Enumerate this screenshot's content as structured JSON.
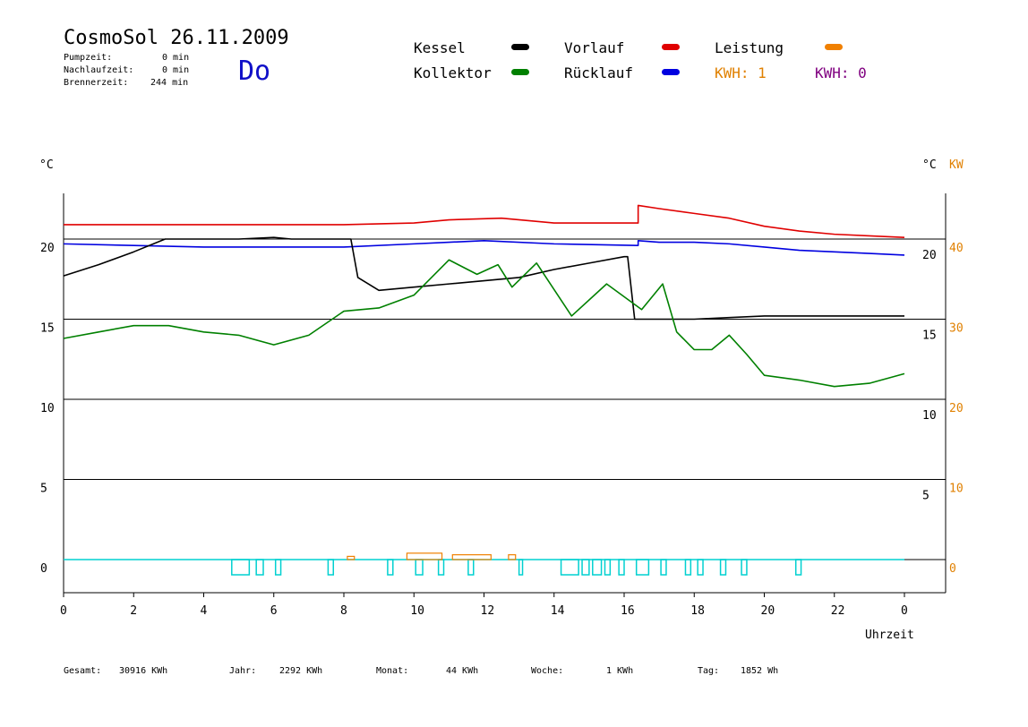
{
  "header": {
    "title": "CosmoSol 26.11.2009",
    "day": "Do",
    "stats": [
      {
        "label": "Pumpzeit:",
        "value": "0 min"
      },
      {
        "label": "Nachlaufzeit:",
        "value": "0 min"
      },
      {
        "label": "Brennerzeit:",
        "value": "244 min"
      }
    ]
  },
  "legend": {
    "kessel": {
      "label": "Kessel",
      "color": "#000000"
    },
    "kollektor": {
      "label": "Kollektor",
      "color": "#008000"
    },
    "vorlauf": {
      "label": "Vorlauf",
      "color": "#e00000"
    },
    "ruecklauf": {
      "label": "Rücklauf",
      "color": "#0000e0"
    },
    "leistung": {
      "label": "Leistung",
      "color": "#f08000"
    },
    "kwh1": {
      "label": "KWH: 1",
      "color": "#e08000"
    },
    "kwh2": {
      "label": "KWH: 0",
      "color": "#800080"
    }
  },
  "axes": {
    "left_unit": "°C",
    "right_unit": "°C",
    "right_unit2": "KW",
    "xlabel": "Uhrzeit"
  },
  "footer": [
    {
      "label": "Gesamt:",
      "value": "30916 KWh"
    },
    {
      "label": "Jahr:",
      "value": "2292 KWh"
    },
    {
      "label": "Monat:",
      "value": "44 KWh"
    },
    {
      "label": "Woche:",
      "value": "1 KWh"
    },
    {
      "label": "Tag:",
      "value": "1852 Wh"
    }
  ],
  "chart_data": {
    "type": "line",
    "xlim": [
      0,
      24
    ],
    "ylim": [
      -2,
      23
    ],
    "x_ticks": [
      "0",
      "2",
      "4",
      "6",
      "8",
      "10",
      "12",
      "14",
      "16",
      "18",
      "20",
      "22",
      "0"
    ],
    "left_ticks": [
      {
        "v": 0,
        "t": "0"
      },
      {
        "v": 5,
        "t": "5"
      },
      {
        "v": 10,
        "t": "10"
      },
      {
        "v": 15,
        "t": "15"
      },
      {
        "v": 20,
        "t": "20"
      }
    ],
    "right_ticks": [
      {
        "v": 0,
        "t": "0"
      },
      {
        "v": 5,
        "t": "10"
      },
      {
        "v": 10,
        "t": "20"
      },
      {
        "v": 15,
        "t": "30"
      },
      {
        "v": 20,
        "t": "40"
      }
    ],
    "inner_ticks": [
      {
        "v": 5,
        "t": "5"
      },
      {
        "v": 10,
        "t": "10"
      },
      {
        "v": 15,
        "t": "15"
      },
      {
        "v": 20,
        "t": "20"
      }
    ],
    "grid": [
      5,
      10,
      15,
      20
    ],
    "series": [
      {
        "name": "Vorlauf",
        "color": "#e00000",
        "x": [
          0,
          2,
          4,
          6,
          8,
          10,
          11,
          12.5,
          14,
          16.4,
          16.4,
          17,
          18,
          19,
          20,
          21,
          22,
          23,
          24
        ],
        "y": [
          20.9,
          20.9,
          20.9,
          20.9,
          20.9,
          21,
          21.2,
          21.3,
          21,
          21,
          22.1,
          21.9,
          21.6,
          21.3,
          20.8,
          20.5,
          20.3,
          20.2,
          20.1
        ]
      },
      {
        "name": "Rücklauf",
        "color": "#0000e0",
        "x": [
          0,
          2,
          4,
          6,
          8,
          10,
          11,
          12,
          14,
          16.4,
          16.4,
          17,
          18,
          19,
          20,
          21,
          22,
          23,
          24
        ],
        "y": [
          19.7,
          19.6,
          19.5,
          19.5,
          19.5,
          19.7,
          19.8,
          19.9,
          19.7,
          19.6,
          19.9,
          19.8,
          19.8,
          19.7,
          19.5,
          19.3,
          19.2,
          19.1,
          19.0
        ]
      },
      {
        "name": "Kessel",
        "color": "#000000",
        "x": [
          0,
          1,
          2,
          2.9,
          4,
          5,
          6,
          6.5,
          7,
          8,
          8.2,
          8.4,
          9,
          10,
          11,
          12,
          13,
          14,
          15,
          16,
          16.1,
          16.3,
          17,
          18,
          19,
          20,
          21,
          22,
          23,
          24
        ],
        "y": [
          17.7,
          18.4,
          19.2,
          20.0,
          20.0,
          20.0,
          20.1,
          20.0,
          20.0,
          20.0,
          20.0,
          17.6,
          16.8,
          17.0,
          17.2,
          17.4,
          17.6,
          18.1,
          18.5,
          18.9,
          18.9,
          15.0,
          15.0,
          15.0,
          15.1,
          15.2,
          15.2,
          15.2,
          15.2,
          15.2
        ]
      },
      {
        "name": "Kollektor",
        "color": "#008000",
        "x": [
          0,
          1,
          2,
          3,
          4,
          5,
          6,
          7,
          8,
          9,
          10,
          11,
          11.8,
          12.4,
          12.8,
          13.5,
          14.5,
          15.5,
          16.5,
          17.1,
          17.5,
          18,
          18.5,
          19,
          19.5,
          20,
          21,
          22,
          23,
          24
        ],
        "y": [
          13.8,
          14.2,
          14.6,
          14.6,
          14.2,
          14,
          13.4,
          14,
          15.5,
          15.7,
          16.5,
          18.7,
          17.8,
          18.4,
          17,
          18.5,
          15.2,
          17.2,
          15.6,
          17.2,
          14.2,
          13.1,
          13.1,
          14.0,
          12.8,
          11.5,
          11.2,
          10.8,
          11.0,
          11.6
        ]
      }
    ],
    "power_pulses": [
      [
        8.1,
        8.3,
        0.2
      ],
      [
        9.8,
        10.8,
        0.4
      ],
      [
        11.1,
        12.2,
        0.3
      ],
      [
        12.7,
        12.9,
        0.3
      ]
    ],
    "pump_pulses": [
      [
        4.8,
        5.3
      ],
      [
        5.5,
        5.7
      ],
      [
        6.05,
        6.2
      ],
      [
        7.55,
        7.7
      ],
      [
        9.25,
        9.4
      ],
      [
        10.05,
        10.25
      ],
      [
        10.7,
        10.85
      ],
      [
        11.55,
        11.7
      ],
      [
        13.0,
        13.1
      ],
      [
        14.2,
        14.7
      ],
      [
        14.8,
        15.0
      ],
      [
        15.1,
        15.35
      ],
      [
        15.45,
        15.6
      ],
      [
        15.85,
        16.0
      ],
      [
        16.35,
        16.7
      ],
      [
        17.05,
        17.2
      ],
      [
        17.75,
        17.9
      ],
      [
        18.1,
        18.25
      ],
      [
        18.75,
        18.9
      ],
      [
        19.35,
        19.5
      ],
      [
        20.9,
        21.05
      ]
    ]
  }
}
